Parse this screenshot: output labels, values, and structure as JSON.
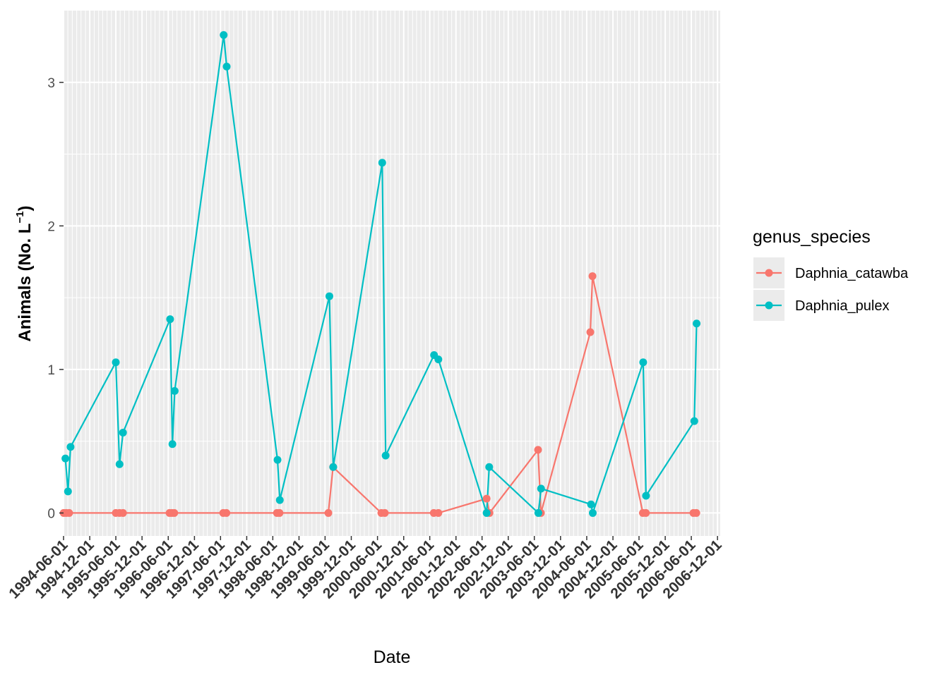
{
  "chart_data": {
    "type": "line",
    "xlabel": "Date",
    "ylabel_main": "Animals (No. L",
    "ylabel_sup": "−1",
    "ylabel_close": ")",
    "x_axis_type": "date",
    "x_tick_labels": [
      "1994-06-01",
      "1994-12-01",
      "1995-06-01",
      "1995-12-01",
      "1996-06-01",
      "1996-12-01",
      "1997-06-01",
      "1997-12-01",
      "1998-06-01",
      "1998-12-01",
      "1999-06-01",
      "1999-12-01",
      "2000-06-01",
      "2000-12-01",
      "2001-06-01",
      "2001-12-01",
      "2002-06-01",
      "2002-12-01",
      "2003-06-01",
      "2003-12-01",
      "2004-06-01",
      "2004-12-01",
      "2005-06-01",
      "2005-12-01",
      "2006-06-01",
      "2006-12-01"
    ],
    "y_ticks": [
      0,
      1,
      2,
      3
    ],
    "y_tick_labels": [
      "0",
      "1",
      "2",
      "3"
    ],
    "xlim": [
      "1994-06-01",
      "2006-12-20"
    ],
    "ylim": [
      -0.16,
      3.5
    ],
    "grid": true,
    "legend_title": "genus_species",
    "legend_position": "right",
    "series": [
      {
        "name": "Daphnia_catawba",
        "color": "#F8766D",
        "points": [
          {
            "x": "1994-06-02",
            "y": 0
          },
          {
            "x": "1994-06-20",
            "y": 0
          },
          {
            "x": "1994-07-10",
            "y": 0
          },
          {
            "x": "1995-06-01",
            "y": 0
          },
          {
            "x": "1995-06-27",
            "y": 0
          },
          {
            "x": "1995-07-21",
            "y": 0
          },
          {
            "x": "1996-06-10",
            "y": 0
          },
          {
            "x": "1996-06-26",
            "y": 0
          },
          {
            "x": "1996-07-13",
            "y": 0
          },
          {
            "x": "1997-06-20",
            "y": 0
          },
          {
            "x": "1997-07-12",
            "y": 0
          },
          {
            "x": "1998-06-30",
            "y": 0
          },
          {
            "x": "1998-07-18",
            "y": 0
          },
          {
            "x": "1999-06-24",
            "y": 0
          },
          {
            "x": "1999-07-27",
            "y": 0.32
          },
          {
            "x": "2000-06-28",
            "y": 0
          },
          {
            "x": "2000-07-22",
            "y": 0
          },
          {
            "x": "2001-06-29",
            "y": 0
          },
          {
            "x": "2001-07-31",
            "y": 0
          },
          {
            "x": "2002-07-03",
            "y": 0.1
          },
          {
            "x": "2002-07-23",
            "y": 0
          },
          {
            "x": "2003-06-27",
            "y": 0.44
          },
          {
            "x": "2003-07-17",
            "y": 0
          },
          {
            "x": "2004-06-26",
            "y": 1.26
          },
          {
            "x": "2004-07-11",
            "y": 1.65
          },
          {
            "x": "2005-06-28",
            "y": 0
          },
          {
            "x": "2005-07-19",
            "y": 0
          },
          {
            "x": "2006-06-16",
            "y": 0
          },
          {
            "x": "2006-07-06",
            "y": 0
          }
        ]
      },
      {
        "name": "Daphnia_pulex",
        "color": "#00BFC4",
        "points": [
          {
            "x": "1994-06-14",
            "y": 0.38
          },
          {
            "x": "1994-07-02",
            "y": 0.15
          },
          {
            "x": "1994-07-20",
            "y": 0.46
          },
          {
            "x": "1995-06-01",
            "y": 1.05
          },
          {
            "x": "1995-06-27",
            "y": 0.34
          },
          {
            "x": "1995-07-21",
            "y": 0.56
          },
          {
            "x": "1996-06-14",
            "y": 1.35
          },
          {
            "x": "1996-06-30",
            "y": 0.48
          },
          {
            "x": "1996-07-16",
            "y": 0.85
          },
          {
            "x": "1997-06-23",
            "y": 3.33
          },
          {
            "x": "1997-07-14",
            "y": 3.11
          },
          {
            "x": "1998-07-04",
            "y": 0.37
          },
          {
            "x": "1998-07-20",
            "y": 0.09
          },
          {
            "x": "1999-07-01",
            "y": 1.51
          },
          {
            "x": "1999-07-28",
            "y": 0.32
          },
          {
            "x": "2000-07-04",
            "y": 2.44
          },
          {
            "x": "2000-07-28",
            "y": 0.4
          },
          {
            "x": "2001-07-01",
            "y": 1.1
          },
          {
            "x": "2001-07-31",
            "y": 1.07
          },
          {
            "x": "2002-07-03",
            "y": 0
          },
          {
            "x": "2002-07-21",
            "y": 0.32
          },
          {
            "x": "2003-06-29",
            "y": 0
          },
          {
            "x": "2003-07-18",
            "y": 0.17
          },
          {
            "x": "2004-07-01",
            "y": 0.06
          },
          {
            "x": "2004-07-13",
            "y": 0
          },
          {
            "x": "2005-06-30",
            "y": 1.05
          },
          {
            "x": "2005-07-20",
            "y": 0.12
          },
          {
            "x": "2006-06-22",
            "y": 0.64
          },
          {
            "x": "2006-07-08",
            "y": 1.32
          }
        ]
      }
    ]
  }
}
